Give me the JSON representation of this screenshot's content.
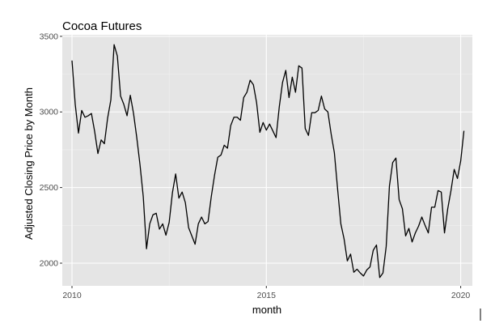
{
  "chart_data": {
    "type": "line",
    "title": "Cocoa Futures",
    "xlabel": "month",
    "ylabel": "Adjusted Closing Price by Month",
    "xlim": [
      2009.75,
      2020.3
    ],
    "ylim": [
      1850,
      3510
    ],
    "x_ticks": [
      {
        "value": 2010,
        "label": "2010"
      },
      {
        "value": 2015,
        "label": "2015"
      },
      {
        "value": 2020,
        "label": "2020"
      }
    ],
    "y_ticks": [
      {
        "value": 2000,
        "label": "2000"
      },
      {
        "value": 2500,
        "label": "2500"
      },
      {
        "value": 3000,
        "label": "3000"
      },
      {
        "value": 3500,
        "label": "3500"
      }
    ],
    "grid": true,
    "colors": {
      "panel_background": "#e5e5e5",
      "grid_major": "#ffffff",
      "grid_minor": "#f0f0f0",
      "line": "#000000"
    },
    "series": [
      {
        "start": 2010.0,
        "step": 0.0833333,
        "values": [
          3340,
          3050,
          2860,
          3010,
          2965,
          2975,
          2990,
          2870,
          2725,
          2815,
          2790,
          2960,
          3080,
          3445,
          3370,
          3105,
          3050,
          2975,
          3110,
          2990,
          2830,
          2650,
          2440,
          2095,
          2260,
          2320,
          2330,
          2225,
          2260,
          2185,
          2270,
          2465,
          2590,
          2430,
          2470,
          2400,
          2235,
          2180,
          2125,
          2260,
          2305,
          2260,
          2275,
          2440,
          2580,
          2700,
          2715,
          2780,
          2760,
          2910,
          2965,
          2965,
          2945,
          3095,
          3130,
          3210,
          3180,
          3060,
          2865,
          2930,
          2880,
          2920,
          2875,
          2830,
          3035,
          3195,
          3275,
          3095,
          3230,
          3130,
          3305,
          3290,
          2890,
          2845,
          2995,
          2995,
          3010,
          3105,
          3020,
          3000,
          2855,
          2730,
          2490,
          2260,
          2160,
          2015,
          2060,
          1940,
          1960,
          1935,
          1915,
          1955,
          1975,
          2085,
          2120,
          1905,
          1935,
          2110,
          2510,
          2665,
          2695,
          2420,
          2360,
          2180,
          2230,
          2140,
          2200,
          2245,
          2305,
          2250,
          2200,
          2370,
          2370,
          2480,
          2470,
          2200,
          2360,
          2480,
          2620,
          2560,
          2675,
          2875
        ]
      }
    ]
  }
}
